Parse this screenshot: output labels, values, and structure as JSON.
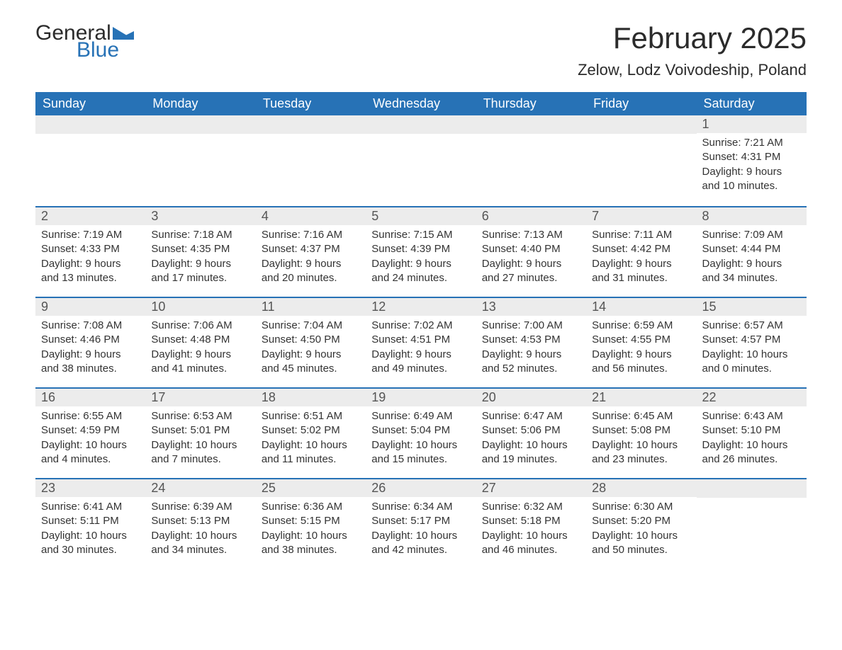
{
  "logo": {
    "text1": "General",
    "text2": "Blue"
  },
  "title": "February 2025",
  "location": "Zelow, Lodz Voivodeship, Poland",
  "colors": {
    "header_bg": "#2772b6",
    "header_text": "#ffffff",
    "daynum_bg": "#ececec",
    "border": "#2772b6",
    "text": "#333333",
    "logo_dark": "#2b2b2b",
    "logo_blue": "#2772b6",
    "page_bg": "#ffffff"
  },
  "days_of_week": [
    "Sunday",
    "Monday",
    "Tuesday",
    "Wednesday",
    "Thursday",
    "Friday",
    "Saturday"
  ],
  "weeks": [
    [
      {
        "n": "",
        "sr": "",
        "ss": "",
        "dl": ""
      },
      {
        "n": "",
        "sr": "",
        "ss": "",
        "dl": ""
      },
      {
        "n": "",
        "sr": "",
        "ss": "",
        "dl": ""
      },
      {
        "n": "",
        "sr": "",
        "ss": "",
        "dl": ""
      },
      {
        "n": "",
        "sr": "",
        "ss": "",
        "dl": ""
      },
      {
        "n": "",
        "sr": "",
        "ss": "",
        "dl": ""
      },
      {
        "n": "1",
        "sr": "Sunrise: 7:21 AM",
        "ss": "Sunset: 4:31 PM",
        "dl": "Daylight: 9 hours and 10 minutes."
      }
    ],
    [
      {
        "n": "2",
        "sr": "Sunrise: 7:19 AM",
        "ss": "Sunset: 4:33 PM",
        "dl": "Daylight: 9 hours and 13 minutes."
      },
      {
        "n": "3",
        "sr": "Sunrise: 7:18 AM",
        "ss": "Sunset: 4:35 PM",
        "dl": "Daylight: 9 hours and 17 minutes."
      },
      {
        "n": "4",
        "sr": "Sunrise: 7:16 AM",
        "ss": "Sunset: 4:37 PM",
        "dl": "Daylight: 9 hours and 20 minutes."
      },
      {
        "n": "5",
        "sr": "Sunrise: 7:15 AM",
        "ss": "Sunset: 4:39 PM",
        "dl": "Daylight: 9 hours and 24 minutes."
      },
      {
        "n": "6",
        "sr": "Sunrise: 7:13 AM",
        "ss": "Sunset: 4:40 PM",
        "dl": "Daylight: 9 hours and 27 minutes."
      },
      {
        "n": "7",
        "sr": "Sunrise: 7:11 AM",
        "ss": "Sunset: 4:42 PM",
        "dl": "Daylight: 9 hours and 31 minutes."
      },
      {
        "n": "8",
        "sr": "Sunrise: 7:09 AM",
        "ss": "Sunset: 4:44 PM",
        "dl": "Daylight: 9 hours and 34 minutes."
      }
    ],
    [
      {
        "n": "9",
        "sr": "Sunrise: 7:08 AM",
        "ss": "Sunset: 4:46 PM",
        "dl": "Daylight: 9 hours and 38 minutes."
      },
      {
        "n": "10",
        "sr": "Sunrise: 7:06 AM",
        "ss": "Sunset: 4:48 PM",
        "dl": "Daylight: 9 hours and 41 minutes."
      },
      {
        "n": "11",
        "sr": "Sunrise: 7:04 AM",
        "ss": "Sunset: 4:50 PM",
        "dl": "Daylight: 9 hours and 45 minutes."
      },
      {
        "n": "12",
        "sr": "Sunrise: 7:02 AM",
        "ss": "Sunset: 4:51 PM",
        "dl": "Daylight: 9 hours and 49 minutes."
      },
      {
        "n": "13",
        "sr": "Sunrise: 7:00 AM",
        "ss": "Sunset: 4:53 PM",
        "dl": "Daylight: 9 hours and 52 minutes."
      },
      {
        "n": "14",
        "sr": "Sunrise: 6:59 AM",
        "ss": "Sunset: 4:55 PM",
        "dl": "Daylight: 9 hours and 56 minutes."
      },
      {
        "n": "15",
        "sr": "Sunrise: 6:57 AM",
        "ss": "Sunset: 4:57 PM",
        "dl": "Daylight: 10 hours and 0 minutes."
      }
    ],
    [
      {
        "n": "16",
        "sr": "Sunrise: 6:55 AM",
        "ss": "Sunset: 4:59 PM",
        "dl": "Daylight: 10 hours and 4 minutes."
      },
      {
        "n": "17",
        "sr": "Sunrise: 6:53 AM",
        "ss": "Sunset: 5:01 PM",
        "dl": "Daylight: 10 hours and 7 minutes."
      },
      {
        "n": "18",
        "sr": "Sunrise: 6:51 AM",
        "ss": "Sunset: 5:02 PM",
        "dl": "Daylight: 10 hours and 11 minutes."
      },
      {
        "n": "19",
        "sr": "Sunrise: 6:49 AM",
        "ss": "Sunset: 5:04 PM",
        "dl": "Daylight: 10 hours and 15 minutes."
      },
      {
        "n": "20",
        "sr": "Sunrise: 6:47 AM",
        "ss": "Sunset: 5:06 PM",
        "dl": "Daylight: 10 hours and 19 minutes."
      },
      {
        "n": "21",
        "sr": "Sunrise: 6:45 AM",
        "ss": "Sunset: 5:08 PM",
        "dl": "Daylight: 10 hours and 23 minutes."
      },
      {
        "n": "22",
        "sr": "Sunrise: 6:43 AM",
        "ss": "Sunset: 5:10 PM",
        "dl": "Daylight: 10 hours and 26 minutes."
      }
    ],
    [
      {
        "n": "23",
        "sr": "Sunrise: 6:41 AM",
        "ss": "Sunset: 5:11 PM",
        "dl": "Daylight: 10 hours and 30 minutes."
      },
      {
        "n": "24",
        "sr": "Sunrise: 6:39 AM",
        "ss": "Sunset: 5:13 PM",
        "dl": "Daylight: 10 hours and 34 minutes."
      },
      {
        "n": "25",
        "sr": "Sunrise: 6:36 AM",
        "ss": "Sunset: 5:15 PM",
        "dl": "Daylight: 10 hours and 38 minutes."
      },
      {
        "n": "26",
        "sr": "Sunrise: 6:34 AM",
        "ss": "Sunset: 5:17 PM",
        "dl": "Daylight: 10 hours and 42 minutes."
      },
      {
        "n": "27",
        "sr": "Sunrise: 6:32 AM",
        "ss": "Sunset: 5:18 PM",
        "dl": "Daylight: 10 hours and 46 minutes."
      },
      {
        "n": "28",
        "sr": "Sunrise: 6:30 AM",
        "ss": "Sunset: 5:20 PM",
        "dl": "Daylight: 10 hours and 50 minutes."
      },
      {
        "n": "",
        "sr": "",
        "ss": "",
        "dl": ""
      }
    ]
  ]
}
